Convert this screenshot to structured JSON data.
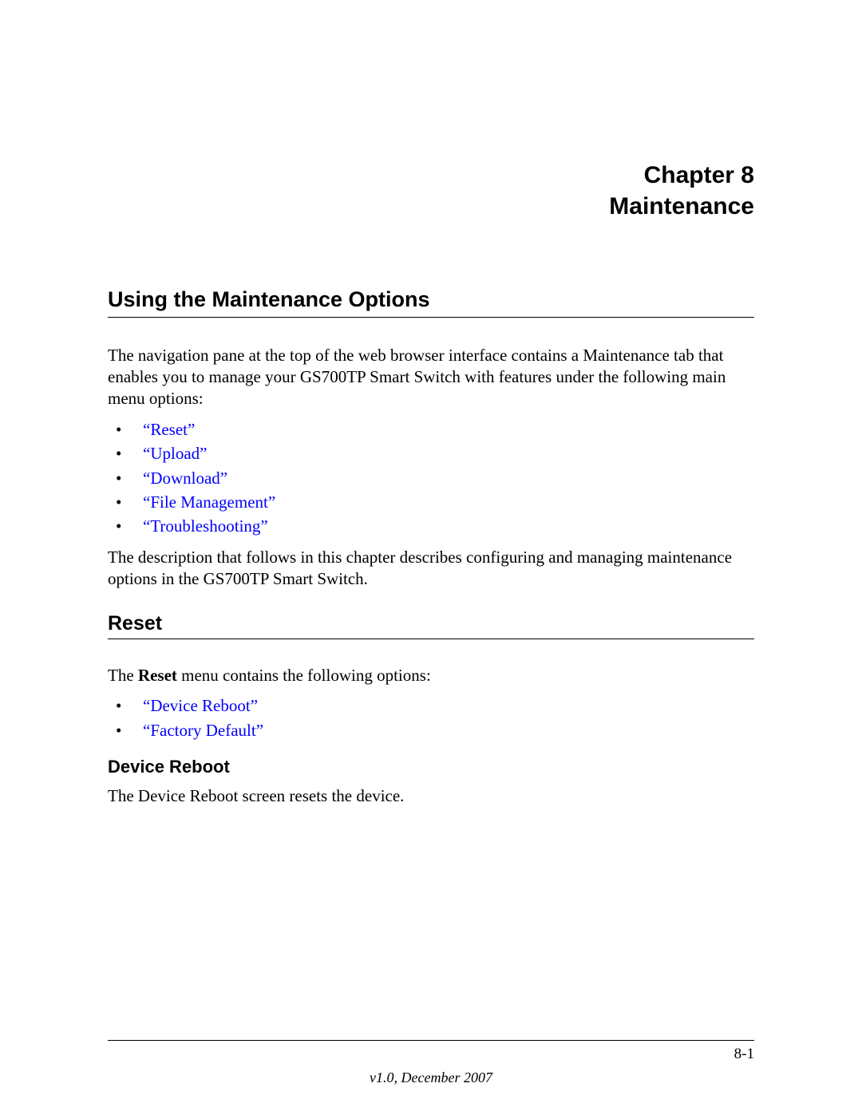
{
  "chapter": {
    "line1": "Chapter 8",
    "line2": "Maintenance"
  },
  "section1": {
    "title": "Using the Maintenance Options",
    "intro": "The navigation pane at the top of the web browser interface contains a Maintenance tab that enables you to manage your GS700TP Smart Switch with features under the following main menu options:",
    "links": [
      "“Reset”",
      "“Upload”",
      "“Download”",
      "“File Management”",
      "“Troubleshooting”"
    ],
    "outro": "The description that follows in this chapter describes configuring and managing maintenance options in the GS700TP Smart Switch."
  },
  "section2": {
    "title": "Reset",
    "intro_pre": "The ",
    "intro_bold": "Reset",
    "intro_post": " menu contains the following options:",
    "links": [
      "“Device Reboot”",
      "“Factory Default”"
    ]
  },
  "section3": {
    "title": "Device Reboot",
    "text": "The Device Reboot screen resets the device."
  },
  "footer": {
    "page_number": "8-1",
    "version": "v1.0, December 2007"
  },
  "colors": {
    "link": "#0000ff",
    "text": "#000000",
    "background": "#ffffff"
  }
}
